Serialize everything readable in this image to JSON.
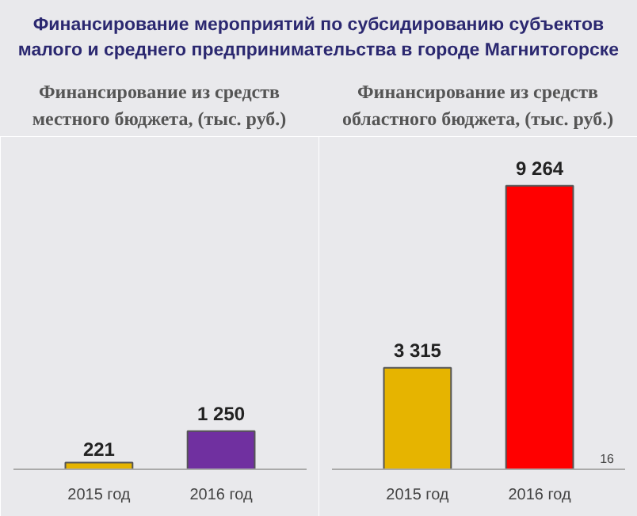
{
  "chart_data": [
    {
      "type": "other",
      "title": "Финансирование мероприятий по субсидированию субъектов малого и среднего предпринимательства в городе Магнитогорске"
    },
    {
      "type": "bar",
      "title": "Финансирование из средств местного бюджета, (тыс. руб.)",
      "categories": [
        "2015 год",
        "2016 год"
      ],
      "values": [
        221,
        1250
      ],
      "colors": [
        "#e6b400",
        "#7030a0"
      ],
      "data_labels": true,
      "value_labels": [
        "221",
        "1 250"
      ]
    },
    {
      "type": "bar",
      "title": "Финансирование из средств областного бюджета, (тыс. руб.)",
      "categories": [
        "2015 год",
        "2016 год"
      ],
      "values": [
        3315,
        9264
      ],
      "colors": [
        "#e6b400",
        "#ff0000"
      ],
      "data_labels": true,
      "value_labels": [
        "3 315",
        "9 264"
      ],
      "annotations": [
        "16"
      ]
    }
  ]
}
